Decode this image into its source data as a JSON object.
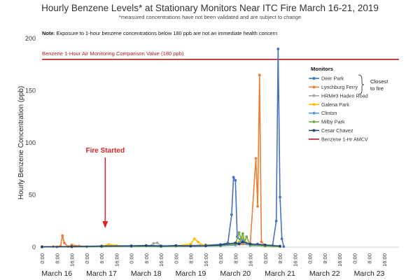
{
  "chart_data": {
    "type": "line",
    "title": "Hourly Benzene Levels* at Stationary Monitors Near ITC Fire March 16-21, 2019",
    "subtitle": "*measured concentrations have not been validated and are subject to change",
    "note_prefix": "Note",
    "note": ": Exposure to 1-hour benzene concentrations below 180 ppb are not an immediate health concern",
    "ylabel": "Hourly Benzene Concentration (ppb)",
    "xlabel": "",
    "ylim": [
      0,
      200
    ],
    "yticks": [
      "0",
      "50",
      "100",
      "150",
      "200"
    ],
    "ytick_values": [
      0,
      50,
      100,
      150,
      200
    ],
    "xlim_hours": [
      0,
      192
    ],
    "day_labels": [
      "March 16",
      "March 17",
      "March 18",
      "March 19",
      "March 20",
      "March 21",
      "March 22",
      "March 23"
    ],
    "hour_ticks": [
      "0:00",
      "8:00",
      "16:00"
    ],
    "grid": false,
    "legend_position": "right",
    "legend_title": "Monitors",
    "closest_label_1": "Closest",
    "closest_label_2": "to fire",
    "reference_line": {
      "name": "Benzene 1-Hr AMCV",
      "label": "Benzene 1-Hour Air Monitoring Comparison Value (180 ppb)",
      "value": 180,
      "color": "#b71c1c"
    },
    "annotation": {
      "text": "Fire Started",
      "hour": 34,
      "color": "#e02020"
    },
    "series": [
      {
        "name": "Deer Park",
        "color": "#4472c4",
        "points": [
          [
            0,
            0.5
          ],
          [
            8,
            0.3
          ],
          [
            16,
            0.6
          ],
          [
            24,
            0.4
          ],
          [
            32,
            0.8
          ],
          [
            40,
            1.2
          ],
          [
            48,
            1.0
          ],
          [
            56,
            1.5
          ],
          [
            64,
            1.2
          ],
          [
            72,
            1.0
          ],
          [
            80,
            1.5
          ],
          [
            88,
            2.0
          ],
          [
            96,
            2.5
          ],
          [
            100,
            4.0
          ],
          [
            102,
            31
          ],
          [
            103,
            67
          ],
          [
            104,
            64
          ],
          [
            105,
            10
          ],
          [
            108,
            3
          ],
          [
            112,
            2.0
          ],
          [
            116,
            3.0
          ],
          [
            120,
            2.0
          ],
          [
            124,
            1.5
          ],
          [
            126,
            25
          ],
          [
            127,
            190
          ],
          [
            128,
            48
          ],
          [
            129,
            8
          ],
          [
            130,
            0.5
          ]
        ]
      },
      {
        "name": "Lynchburg Ferry",
        "color": "#ed7d31",
        "points": [
          [
            0,
            0.3
          ],
          [
            6,
            0.5
          ],
          [
            10,
            1.0
          ],
          [
            11,
            11
          ],
          [
            12,
            4.0
          ],
          [
            14,
            0.5
          ],
          [
            16,
            2.0
          ],
          [
            20,
            1.0
          ],
          [
            32,
            0.5
          ],
          [
            48,
            1.0
          ],
          [
            64,
            0.8
          ],
          [
            80,
            1.2
          ],
          [
            96,
            1.5
          ],
          [
            104,
            2.0
          ],
          [
            112,
            3.0
          ],
          [
            115,
            85
          ],
          [
            116,
            39
          ],
          [
            117,
            165
          ],
          [
            118,
            5
          ],
          [
            120,
            2.0
          ],
          [
            124,
            1.0
          ],
          [
            128,
            0.5
          ]
        ]
      },
      {
        "name": "HRM#3 Haden Road",
        "color": "#a5a5a5",
        "points": [
          [
            0,
            0.2
          ],
          [
            16,
            0.3
          ],
          [
            32,
            0.5
          ],
          [
            48,
            0.8
          ],
          [
            58,
            1.0
          ],
          [
            60,
            3.5
          ],
          [
            62,
            4.0
          ],
          [
            64,
            1.0
          ],
          [
            72,
            0.8
          ],
          [
            88,
            1.5
          ],
          [
            104,
            2.0
          ],
          [
            108,
            4.0
          ],
          [
            112,
            2.0
          ],
          [
            120,
            1.0
          ],
          [
            128,
            0.5
          ]
        ]
      },
      {
        "name": "Galena Park",
        "color": "#ffc000",
        "points": [
          [
            0,
            0.2
          ],
          [
            16,
            0.4
          ],
          [
            32,
            1.0
          ],
          [
            36,
            2.5
          ],
          [
            40,
            1.5
          ],
          [
            48,
            0.8
          ],
          [
            56,
            1.0
          ],
          [
            64,
            0.6
          ],
          [
            72,
            1.0
          ],
          [
            80,
            3.0
          ],
          [
            82,
            8.0
          ],
          [
            84,
            5.0
          ],
          [
            86,
            2.0
          ],
          [
            96,
            1.5
          ],
          [
            104,
            3.0
          ],
          [
            108,
            9.0
          ],
          [
            110,
            4.0
          ],
          [
            112,
            2.0
          ],
          [
            120,
            1.0
          ],
          [
            128,
            0.5
          ]
        ]
      },
      {
        "name": "Clinton",
        "color": "#5b9bd5",
        "points": [
          [
            0,
            0.2
          ],
          [
            16,
            0.3
          ],
          [
            32,
            0.5
          ],
          [
            48,
            0.6
          ],
          [
            64,
            0.5
          ],
          [
            80,
            0.8
          ],
          [
            96,
            1.2
          ],
          [
            104,
            2.0
          ],
          [
            108,
            7.0
          ],
          [
            110,
            3.0
          ],
          [
            112,
            1.5
          ],
          [
            120,
            1.0
          ],
          [
            128,
            0.5
          ]
        ]
      },
      {
        "name": "Milby Park",
        "color": "#70ad47",
        "points": [
          [
            0,
            0.2
          ],
          [
            16,
            0.3
          ],
          [
            32,
            0.6
          ],
          [
            48,
            0.8
          ],
          [
            64,
            0.6
          ],
          [
            80,
            1.0
          ],
          [
            96,
            1.5
          ],
          [
            104,
            3.0
          ],
          [
            106,
            14
          ],
          [
            107,
            8.0
          ],
          [
            108,
            13
          ],
          [
            109,
            5.0
          ],
          [
            110,
            10
          ],
          [
            112,
            2.0
          ],
          [
            120,
            1.0
          ],
          [
            128,
            0.5
          ]
        ]
      },
      {
        "name": "Cesar Chavez",
        "color": "#264478",
        "points": [
          [
            0,
            0.2
          ],
          [
            16,
            0.5
          ],
          [
            32,
            1.0
          ],
          [
            48,
            1.2
          ],
          [
            56,
            1.5
          ],
          [
            64,
            1.0
          ],
          [
            72,
            1.5
          ],
          [
            80,
            1.0
          ],
          [
            88,
            1.2
          ],
          [
            96,
            2.0
          ],
          [
            104,
            4.0
          ],
          [
            106,
            3.0
          ],
          [
            108,
            5.0
          ],
          [
            112,
            3.0
          ],
          [
            120,
            2.0
          ],
          [
            128,
            1.0
          ]
        ]
      }
    ]
  }
}
